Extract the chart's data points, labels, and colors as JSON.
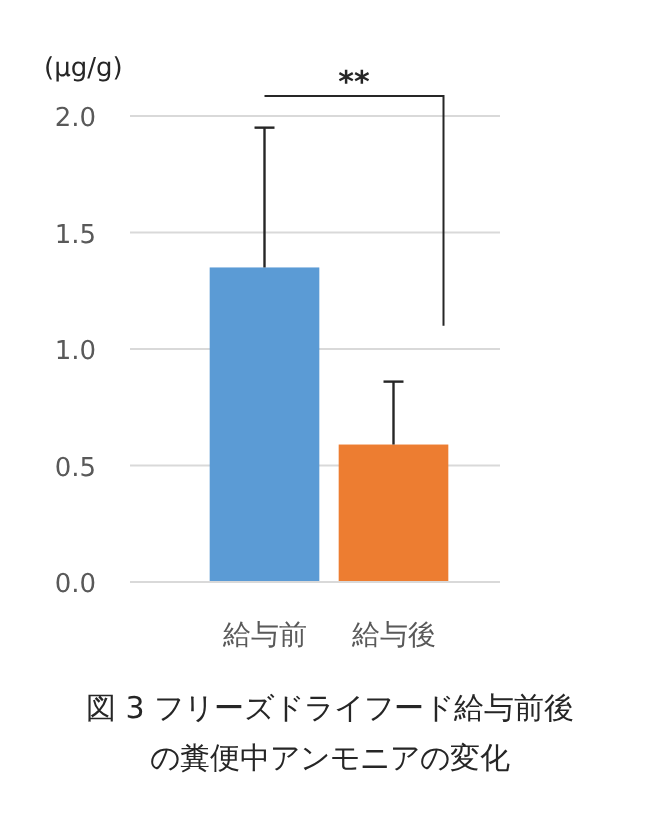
{
  "chart_data": {
    "type": "bar",
    "title": "図 3 フリーズドライフード給与前後の糞便中アンモニアの変化",
    "ylabel": "(µg/g)",
    "categories": [
      "給与前",
      "給与後"
    ],
    "values": [
      1.35,
      0.59
    ],
    "colors": [
      "#5b9bd5",
      "#ed7d31"
    ],
    "errors": [
      0.6,
      0.27
    ],
    "ylim": [
      0,
      2
    ],
    "yticks": [
      {
        "value": 0,
        "label": "0.0"
      },
      {
        "value": 0.5,
        "label": "0.5"
      },
      {
        "value": 1,
        "label": "1.0"
      },
      {
        "value": 1.5,
        "label": "1.5"
      },
      {
        "value": 2,
        "label": "2.0"
      }
    ],
    "grid": "y",
    "annotations": [
      "**"
    ]
  }
}
